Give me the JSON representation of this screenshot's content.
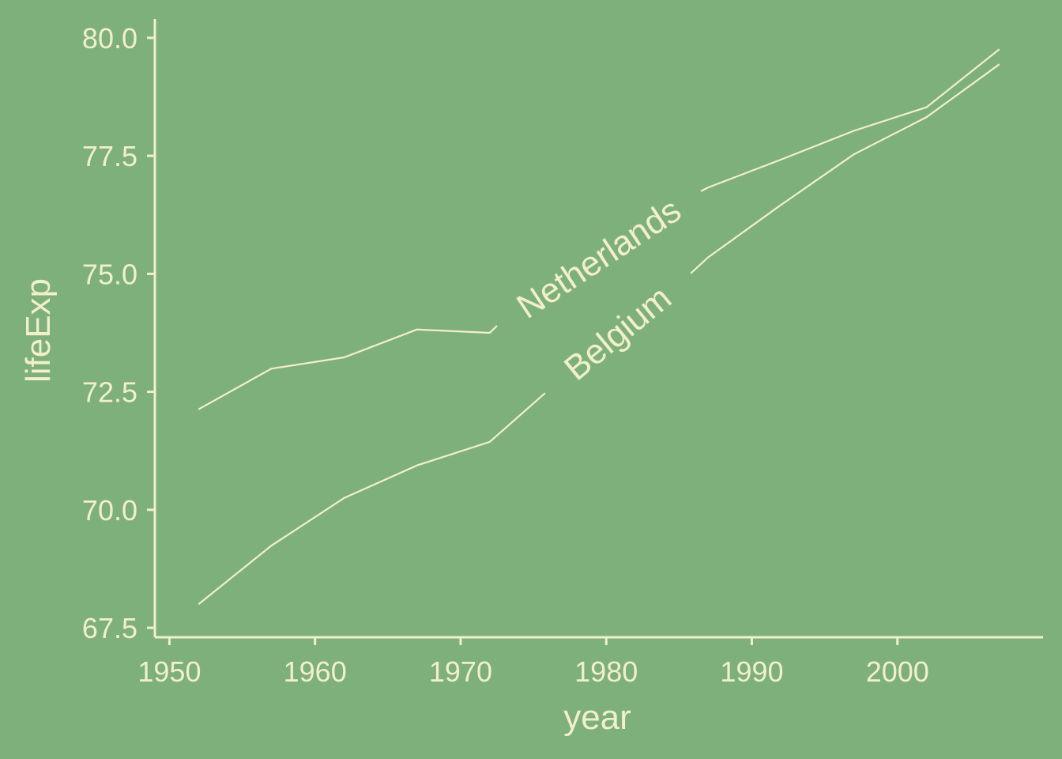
{
  "chart_data": {
    "type": "line",
    "xlabel": "year",
    "ylabel": "lifeExp",
    "xlim": [
      1949,
      2010
    ],
    "ylim": [
      67.3,
      80.4
    ],
    "x_ticks": [
      1950,
      1960,
      1970,
      1980,
      1990,
      2000
    ],
    "x_tick_labels": [
      "1950",
      "1960",
      "1970",
      "1980",
      "1990",
      "2000"
    ],
    "y_ticks": [
      67.5,
      70.0,
      72.5,
      75.0,
      77.5,
      80.0
    ],
    "y_tick_labels": [
      "67.5",
      "70.0",
      "72.5",
      "75.0",
      "77.5",
      "80.0"
    ],
    "grid": false,
    "legend": "none (direct labels on lines)",
    "x": [
      1952,
      1957,
      1962,
      1967,
      1972,
      1977,
      1982,
      1987,
      1992,
      1997,
      2002,
      2007
    ],
    "series": [
      {
        "name": "Netherlands",
        "values": [
          72.13,
          72.99,
          73.23,
          73.82,
          73.75,
          75.24,
          76.05,
          76.83,
          77.42,
          78.03,
          78.53,
          79.76
        ],
        "label_x_range": [
          1972.5,
          1986.5
        ]
      },
      {
        "name": "Belgium",
        "values": [
          68.0,
          69.24,
          70.25,
          70.94,
          71.44,
          72.8,
          73.93,
          75.35,
          76.46,
          77.53,
          78.32,
          79.44
        ],
        "label_x_range": [
          1975.8,
          1985.8
        ]
      }
    ]
  },
  "colors": {
    "background": "#7eb07b",
    "foreground": "#f2f0c8"
  }
}
